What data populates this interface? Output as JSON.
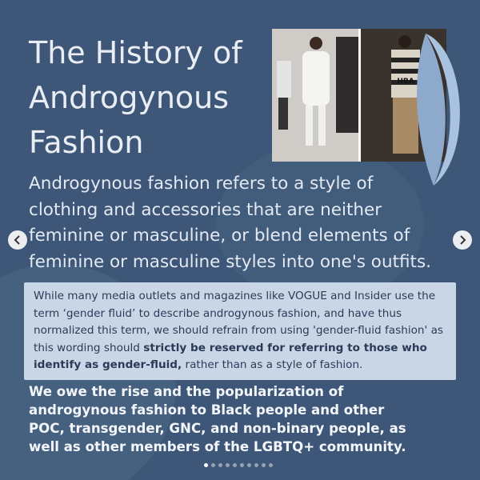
{
  "slide": {
    "title_lines": [
      "The History of",
      "Androgynous",
      "Fashion"
    ],
    "intro_lines": [
      "Androgynous fashion refers to a style of",
      "clothing and accessories that are neither",
      "feminine or masculine, or blend elements of",
      "feminine or masculine styles into one's outfits."
    ],
    "note": {
      "before": "While many media outlets and magazines like VOGUE and Insider use the term ‘gender fluid’ to describe androgynous fashion, and have thus normalized this term, we should refrain from using 'gender-fluid fashion' as this wording should ",
      "bold": "strictly be reserved for referring to those who identify as gender-fluid,",
      "after": " rather than as a style of fashion."
    },
    "footer_lines": [
      "We owe the rise and the popularization of",
      "androgynous fashion to Black people and other",
      "POC, transgender, GNC, and non-binary people, as",
      "well as other members of the LGBTQ+ community."
    ],
    "photo_captions": [
      "HBA"
    ]
  }
}
